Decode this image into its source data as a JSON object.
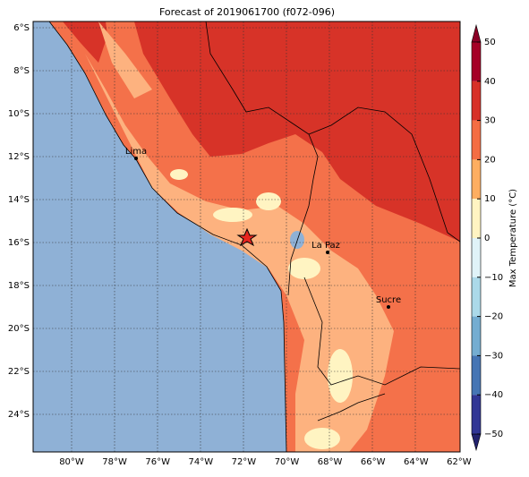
{
  "title": "Forecast of 2019061700 (f072-096)",
  "lon_labels": [
    "80°W",
    "78°W",
    "76°W",
    "74°W",
    "72°W",
    "70°W",
    "68°W",
    "66°W",
    "64°W",
    "62°W"
  ],
  "lat_labels": [
    "6°S",
    "8°S",
    "10°S",
    "12°S",
    "14°S",
    "16°S",
    "18°S",
    "20°S",
    "22°S",
    "24°S"
  ],
  "colorbar": {
    "label": "Max Temperature (°C)",
    "tick_labels": [
      "50",
      "40",
      "30",
      "20",
      "10",
      "0",
      "−10",
      "−20",
      "−30",
      "−40",
      "−50"
    ]
  },
  "cities": [
    {
      "name": "Lima"
    },
    {
      "name": "La Paz"
    },
    {
      "name": "Sucre"
    }
  ]
}
